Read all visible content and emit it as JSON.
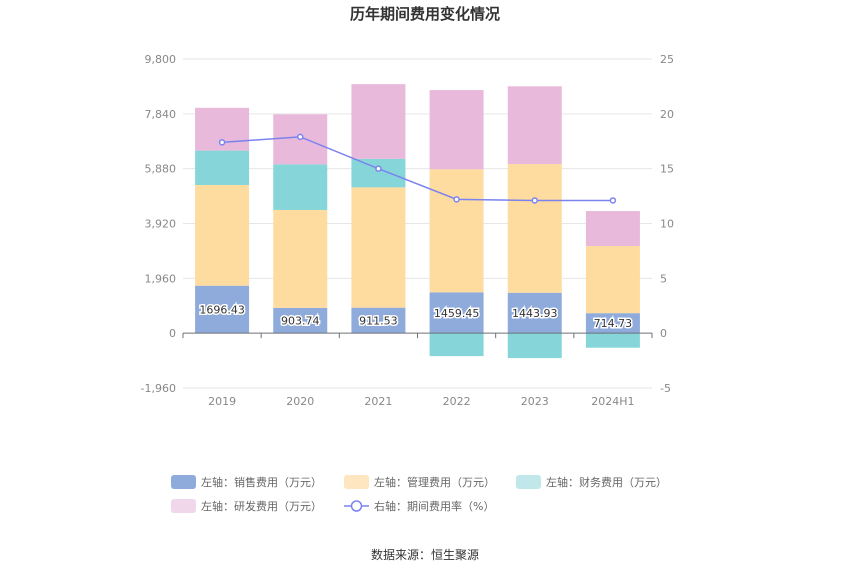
{
  "chart_data": {
    "type": "bar",
    "title": "历年期间费用变化情况",
    "categories": [
      "2019",
      "2020",
      "2021",
      "2022",
      "2023",
      "2024H1"
    ],
    "y_left": {
      "ticks": [
        "-1,960",
        "0",
        "1,960",
        "3,920",
        "5,880",
        "7,840",
        "9,800"
      ],
      "range": [
        -1960,
        9800
      ]
    },
    "y_right": {
      "ticks": [
        "-5",
        "0",
        "5",
        "10",
        "15",
        "20",
        "25"
      ],
      "range": [
        -5,
        25
      ]
    },
    "series": [
      {
        "name": "左轴：销售费用（万元）",
        "type": "bar",
        "stack": "left",
        "color": "#8fabdb",
        "values": [
          1696.43,
          903.74,
          911.53,
          1459.45,
          1443.93,
          714.73
        ],
        "labels": [
          "1696.43",
          "903.74",
          "911.53",
          "1459.45",
          "1443.93",
          "714.73"
        ]
      },
      {
        "name": "左轴：管理费用（万元）",
        "type": "bar",
        "stack": "left",
        "color": "#fedb9f",
        "values": [
          3600,
          3500,
          4300,
          4400,
          4600,
          2400
        ]
      },
      {
        "name": "左轴：财务费用（万元）",
        "type": "bar",
        "stack": "left",
        "color": "#86d6d9",
        "values": [
          1230,
          1630,
          1020,
          -820,
          -890,
          -520
        ]
      },
      {
        "name": "左轴：研发费用（万元）",
        "type": "bar",
        "stack": "left",
        "color": "#e8b9da",
        "values": [
          1530,
          1790,
          2670,
          2830,
          2780,
          1250
        ]
      },
      {
        "name": "右轴：期间费用率（%）",
        "type": "line",
        "axis": "right",
        "color": "#7b83ee",
        "values": [
          17.4,
          17.9,
          15.0,
          12.2,
          12.1,
          12.1
        ]
      }
    ],
    "grid": true,
    "legend_position": "bottom"
  },
  "source": "数据来源：恒生聚源"
}
